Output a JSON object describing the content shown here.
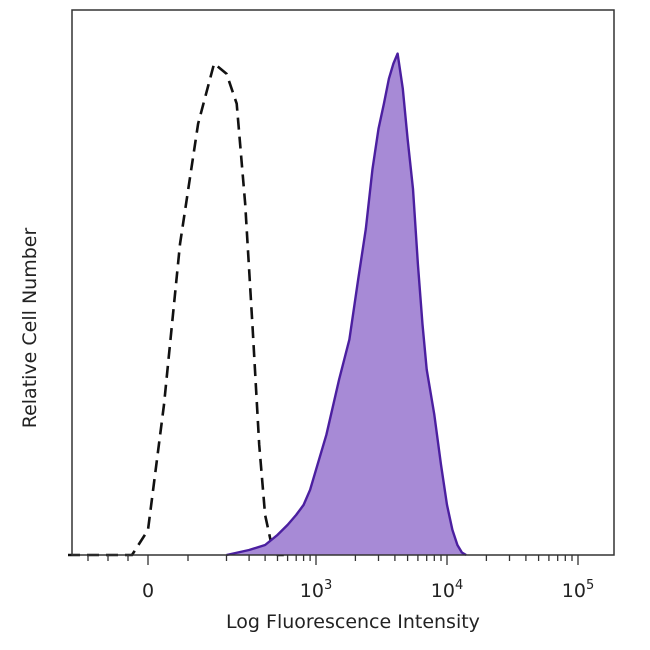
{
  "chart_data": {
    "type": "area",
    "xlabel": "Log Fluorescence Intensity",
    "ylabel": "Relative Cell Number",
    "x_scale": "biexponential",
    "x_tick_labels": [
      {
        "value": 0,
        "base": "0",
        "exp": ""
      },
      {
        "value": 1000,
        "base": "10",
        "exp": "3"
      },
      {
        "value": 10000,
        "base": "10",
        "exp": "4"
      },
      {
        "value": 100000,
        "base": "10",
        "exp": "5"
      }
    ],
    "y_tick_labels": [],
    "ylim": [
      0,
      100
    ],
    "grid": false,
    "legend": "none",
    "series": [
      {
        "style": "dashed",
        "color": "#111111",
        "fill": "none",
        "x": [
          -200,
          -40,
          0,
          40,
          80,
          120,
          160,
          200,
          240,
          280,
          320,
          360,
          400,
          450,
          500,
          560
        ],
        "y": [
          0,
          0,
          5,
          30,
          62,
          86,
          98,
          96,
          90,
          70,
          45,
          22,
          8,
          2,
          0,
          0
        ]
      },
      {
        "style": "solid",
        "color": "#4b1fa0",
        "fill": "#a78ad6",
        "x": [
          200,
          300,
          400,
          500,
          600,
          700,
          800,
          900,
          1000,
          1200,
          1500,
          1800,
          2100,
          2400,
          2700,
          3000,
          3300,
          3600,
          3900,
          4200,
          4600,
          5000,
          5500,
          6000,
          6500,
          7000,
          8000,
          9000,
          10000,
          11000,
          12000,
          13000,
          14000
        ],
        "y": [
          0,
          1,
          2,
          4,
          6,
          8,
          10,
          13,
          17,
          24,
          35,
          43,
          55,
          65,
          77,
          85,
          90,
          95,
          98,
          100,
          93,
          83,
          73,
          58,
          46,
          37,
          28,
          18,
          10,
          5,
          2,
          0.5,
          0
        ]
      }
    ]
  }
}
